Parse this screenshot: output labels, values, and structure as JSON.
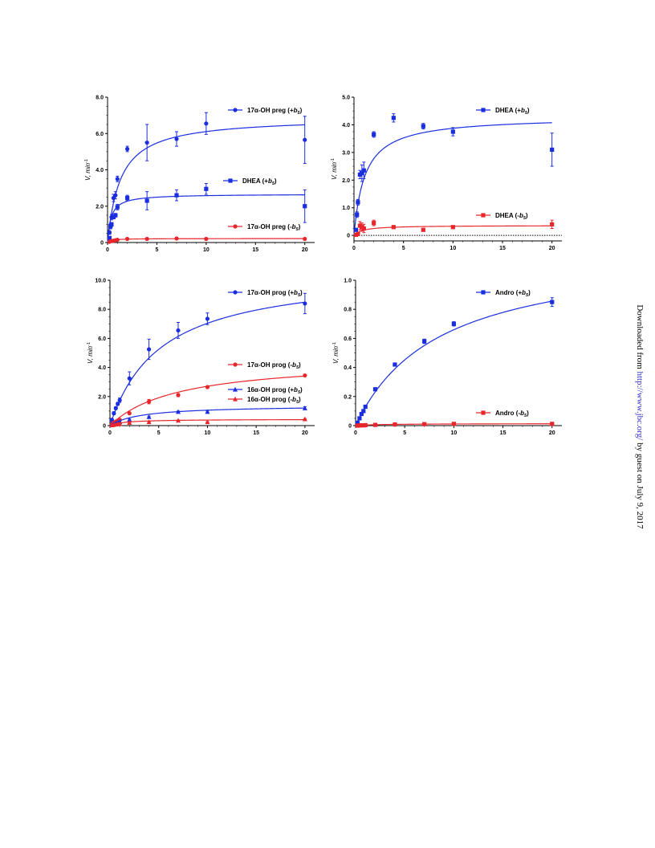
{
  "colors": {
    "blue": "#1a2ee0",
    "red": "#e8262b",
    "axis": "#000000"
  },
  "side_note": {
    "prefix": "Downloaded from ",
    "link": "http://www.jbc.org/",
    "suffix": " by guest on July 9, 2017"
  },
  "chart_data": [
    {
      "type": "scatter",
      "ylabel": "V, min",
      "ylabel_sup": "-1",
      "xlim": [
        0,
        21
      ],
      "xticks": [
        0,
        5,
        10,
        15,
        20
      ],
      "ylim": [
        0,
        8
      ],
      "yticks": [
        0,
        2,
        4,
        6,
        8
      ],
      "ytick_labels": [
        "0",
        "2.0",
        "4.0",
        "6.0",
        "8.0"
      ],
      "series": [
        {
          "name": "17α-OH preg (+b5)",
          "label_main": "17α-OH preg (",
          "label_sign": "+",
          "label_tail": ")",
          "color": "blue",
          "marker": "circle",
          "points": [
            [
              0.2,
              0.55,
              0.1
            ],
            [
              0.3,
              0.9,
              0.15
            ],
            [
              0.4,
              1.4,
              0.15
            ],
            [
              0.6,
              2.45,
              0.2
            ],
            [
              0.8,
              2.6,
              0.2
            ],
            [
              1,
              3.5,
              0.15
            ],
            [
              2,
              5.15,
              0.15
            ],
            [
              4,
              5.5,
              1.0
            ],
            [
              7,
              5.7,
              0.4
            ],
            [
              10,
              6.55,
              0.6
            ],
            [
              20,
              5.65,
              1.3
            ]
          ],
          "curve": {
            "vmax": 6.9,
            "km": 1.3
          }
        },
        {
          "name": "DHEA (+b5)",
          "label_main": "DHEA (",
          "label_sign": "+",
          "label_tail": ")",
          "color": "blue",
          "marker": "square",
          "points": [
            [
              0.2,
              0.25,
              0.05
            ],
            [
              0.3,
              0.9,
              0.1
            ],
            [
              0.4,
              1.0,
              0.1
            ],
            [
              0.6,
              1.4,
              0.1
            ],
            [
              0.8,
              1.5,
              0.1
            ],
            [
              1,
              1.95,
              0.15
            ],
            [
              2,
              2.45,
              0.15
            ],
            [
              4,
              2.3,
              0.5
            ],
            [
              7,
              2.6,
              0.3
            ],
            [
              10,
              2.95,
              0.3
            ],
            [
              20,
              2.0,
              0.9
            ]
          ],
          "curve": {
            "vmax": 2.67,
            "km": 0.35
          }
        },
        {
          "name": "17α-OH preg (-b5)",
          "label_main": "17α-OH preg (",
          "label_sign": "-",
          "label_tail": ")",
          "color": "red",
          "marker": "circle",
          "points": [
            [
              0.2,
              0.04,
              0.02
            ],
            [
              0.4,
              0.08,
              0.02
            ],
            [
              0.6,
              0.1,
              0.02
            ],
            [
              0.8,
              0.12,
              0.02
            ],
            [
              1,
              0.15,
              0.03
            ],
            [
              2,
              0.2,
              0.03
            ],
            [
              4,
              0.2,
              0.05
            ],
            [
              7,
              0.22,
              0.05
            ],
            [
              10,
              0.2,
              0.04
            ],
            [
              20,
              0.2,
              0.05
            ]
          ],
          "curve": {
            "vmax": 0.22,
            "km": 0.4
          }
        }
      ]
    },
    {
      "type": "scatter",
      "ylabel": "V, min",
      "ylabel_sup": "-1",
      "xlim": [
        0,
        21
      ],
      "xticks": [
        0,
        5,
        10,
        15,
        20
      ],
      "ylim": [
        -0.2,
        5
      ],
      "yticks": [
        0,
        1,
        2,
        3,
        4,
        5
      ],
      "ytick_labels": [
        "0",
        "1.0",
        "2.0",
        "3.0",
        "4.0",
        "5.0"
      ],
      "baseline": 0,
      "series": [
        {
          "name": "DHEA (+b5)",
          "label_main": "DHEA (",
          "label_sign": "+",
          "label_tail": ")",
          "color": "blue",
          "marker": "square",
          "points": [
            [
              0.2,
              0.2,
              0.05
            ],
            [
              0.3,
              0.75,
              0.1
            ],
            [
              0.4,
              1.2,
              0.1
            ],
            [
              0.6,
              2.2,
              0.15
            ],
            [
              0.8,
              2.25,
              0.3
            ],
            [
              1,
              2.35,
              0.3
            ],
            [
              2,
              3.65,
              0.1
            ],
            [
              4,
              4.25,
              0.15
            ],
            [
              7,
              3.95,
              0.1
            ],
            [
              10,
              3.75,
              0.15
            ],
            [
              20,
              3.1,
              0.6
            ]
          ],
          "curve": {
            "vmax": 4.3,
            "km": 1.1
          }
        },
        {
          "name": "DHEA (-b5)",
          "label_main": "DHEA (",
          "label_sign": "-",
          "label_tail": ")",
          "color": "red",
          "marker": "square",
          "points": [
            [
              0.2,
              0.02,
              0.05
            ],
            [
              0.4,
              0.05,
              0.05
            ],
            [
              0.6,
              0.35,
              0.15
            ],
            [
              0.8,
              0.3,
              0.15
            ],
            [
              1,
              0.25,
              0.15
            ],
            [
              2,
              0.45,
              0.1
            ],
            [
              4,
              0.3,
              0.05
            ],
            [
              7,
              0.2,
              0.05
            ],
            [
              10,
              0.3,
              0.05
            ],
            [
              20,
              0.4,
              0.15
            ]
          ],
          "curve": {
            "vmax": 0.36,
            "km": 0.9
          }
        }
      ]
    },
    {
      "type": "scatter",
      "ylabel": "V, min",
      "ylabel_sup": "-1",
      "xlim": [
        0,
        21
      ],
      "xticks": [
        0,
        5,
        10,
        15,
        20
      ],
      "ylim": [
        0,
        10
      ],
      "yticks": [
        0,
        2,
        4,
        6,
        8,
        10
      ],
      "ytick_labels": [
        "0",
        "2.0",
        "4.0",
        "6.0",
        "8.0",
        "10.0"
      ],
      "series": [
        {
          "name": "17α-OH prog (+b5)",
          "label_main": "17α-OH prog (",
          "label_sign": "+",
          "label_tail": ")",
          "color": "blue",
          "marker": "circle",
          "points": [
            [
              0.2,
              0.4,
              0.05
            ],
            [
              0.4,
              0.85,
              0.1
            ],
            [
              0.6,
              1.2,
              0.1
            ],
            [
              0.8,
              1.5,
              0.1
            ],
            [
              1,
              1.75,
              0.15
            ],
            [
              2,
              3.25,
              0.45
            ],
            [
              4,
              5.25,
              0.7
            ],
            [
              7,
              6.55,
              0.55
            ],
            [
              10,
              7.35,
              0.4
            ],
            [
              20,
              8.4,
              0.7
            ]
          ],
          "curve": {
            "vmax": 10.7,
            "km": 5.2
          }
        },
        {
          "name": "17α-OH prog (-b5)",
          "label_main": "17α-OH prog (",
          "label_sign": "-",
          "label_tail": ")",
          "color": "red",
          "marker": "circle",
          "points": [
            [
              0.2,
              0.1,
              0.02
            ],
            [
              0.4,
              0.2,
              0.03
            ],
            [
              0.6,
              0.28,
              0.03
            ],
            [
              0.8,
              0.35,
              0.05
            ],
            [
              1,
              0.4,
              0.05
            ],
            [
              2,
              0.85,
              0.05
            ],
            [
              4,
              1.65,
              0.15
            ],
            [
              7,
              2.1,
              0.1
            ],
            [
              10,
              2.65,
              0.05
            ],
            [
              20,
              3.45,
              0.05
            ]
          ],
          "curve": {
            "vmax": 4.6,
            "km": 7.0
          }
        },
        {
          "name": "16α-OH prog (+b5)",
          "label_main": "16α-OH prog (",
          "label_sign": "+",
          "label_tail": ")",
          "color": "blue",
          "marker": "triangle",
          "points": [
            [
              0.2,
              0.05,
              0.02
            ],
            [
              0.4,
              0.1,
              0.02
            ],
            [
              0.6,
              0.15,
              0.02
            ],
            [
              0.8,
              0.2,
              0.03
            ],
            [
              1,
              0.25,
              0.03
            ],
            [
              2,
              0.4,
              0.05
            ],
            [
              4,
              0.6,
              0.05
            ],
            [
              7,
              0.95,
              0.05
            ],
            [
              10,
              0.95,
              0.05
            ],
            [
              20,
              1.2,
              0.1
            ]
          ],
          "curve": {
            "vmax": 1.4,
            "km": 3.2
          }
        },
        {
          "name": "16α-OH prog (-b5)",
          "label_main": "16α-OH prog (",
          "label_sign": "-",
          "label_tail": ")",
          "color": "red",
          "marker": "triangle",
          "points": [
            [
              0.2,
              0.03,
              0.01
            ],
            [
              0.4,
              0.06,
              0.01
            ],
            [
              0.6,
              0.08,
              0.01
            ],
            [
              0.8,
              0.1,
              0.02
            ],
            [
              1,
              0.12,
              0.02
            ],
            [
              2,
              0.2,
              0.02
            ],
            [
              4,
              0.25,
              0.02
            ],
            [
              7,
              0.35,
              0.03
            ],
            [
              10,
              0.25,
              0.03
            ],
            [
              20,
              0.45,
              0.03
            ]
          ],
          "curve": {
            "vmax": 0.44,
            "km": 1.5
          }
        }
      ]
    },
    {
      "type": "scatter",
      "ylabel": "V, min",
      "ylabel_sup": "-1",
      "xlim": [
        0,
        21
      ],
      "xticks": [
        0,
        5,
        10,
        15,
        20
      ],
      "ylim": [
        0,
        1
      ],
      "yticks": [
        0,
        0.2,
        0.4,
        0.6,
        0.8,
        1
      ],
      "ytick_labels": [
        "0",
        "0.2",
        "0.4",
        "0.6",
        "0.8",
        "1.0"
      ],
      "series": [
        {
          "name": "Andro (+b5)",
          "label_main": "Andro (",
          "label_sign": "+",
          "label_tail": ")",
          "color": "blue",
          "marker": "square",
          "points": [
            [
              0.2,
              0.02,
              0.01
            ],
            [
              0.4,
              0.05,
              0.01
            ],
            [
              0.6,
              0.08,
              0.01
            ],
            [
              0.8,
              0.1,
              0.01
            ],
            [
              1,
              0.13,
              0.01
            ],
            [
              2,
              0.25,
              0.01
            ],
            [
              4,
              0.42,
              0.01
            ],
            [
              7,
              0.58,
              0.015
            ],
            [
              10,
              0.7,
              0.015
            ],
            [
              20,
              0.85,
              0.03
            ]
          ],
          "curve": {
            "vmax": 1.22,
            "km": 8.5
          }
        },
        {
          "name": "Andro (-b5)",
          "label_main": "Andro (",
          "label_sign": "-",
          "label_tail": ")",
          "color": "red",
          "marker": "square",
          "points": [
            [
              0.2,
              0.0,
              0.003
            ],
            [
              0.4,
              0.001,
              0.003
            ],
            [
              0.6,
              0.002,
              0.003
            ],
            [
              0.8,
              0.002,
              0.003
            ],
            [
              1,
              0.003,
              0.003
            ],
            [
              2,
              0.005,
              0.003
            ],
            [
              4,
              0.008,
              0.003
            ],
            [
              7,
              0.01,
              0.003
            ],
            [
              10,
              0.012,
              0.003
            ],
            [
              20,
              0.012,
              0.003
            ]
          ],
          "curve": {
            "vmax": 0.014,
            "km": 2.5
          }
        }
      ]
    }
  ]
}
